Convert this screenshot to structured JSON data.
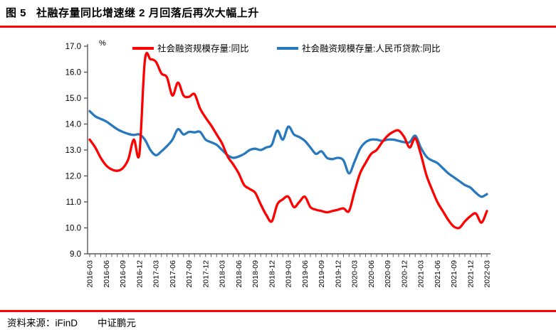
{
  "report": {
    "figure_label": "图 5",
    "figure_title": "社融存量同比增速继 2 月回落后再次大幅上升",
    "source_prefix": "资料来源：iFinD",
    "source_org": "中证鹏元"
  },
  "colors": {
    "accent_rule_red": "#fe0000",
    "series_red": "#ff0000",
    "series_blue": "#2878be",
    "axis_gray": "#595959",
    "tick_text": "#000000"
  },
  "chart_data": {
    "type": "line",
    "title": "",
    "xlabel": "",
    "ylabel": "",
    "unit": "%",
    "ylim": [
      9.0,
      17.0
    ],
    "ytick_step": 1.0,
    "ytick_format_decimals": 1,
    "xtick_label_every": 3,
    "grid": false,
    "legend_position": "top",
    "x": [
      "2016-03",
      "2016-04",
      "2016-05",
      "2016-06",
      "2016-07",
      "2016-08",
      "2016-09",
      "2016-10",
      "2016-11",
      "2016-12",
      "2017-01",
      "2017-02",
      "2017-03",
      "2017-04",
      "2017-05",
      "2017-06",
      "2017-07",
      "2017-08",
      "2017-09",
      "2017-10",
      "2017-11",
      "2017-12",
      "2018-01",
      "2018-02",
      "2018-03",
      "2018-04",
      "2018-05",
      "2018-06",
      "2018-07",
      "2018-08",
      "2018-09",
      "2018-10",
      "2018-11",
      "2018-12",
      "2019-01",
      "2019-02",
      "2019-03",
      "2019-04",
      "2019-05",
      "2019-06",
      "2019-07",
      "2019-08",
      "2019-09",
      "2019-10",
      "2019-11",
      "2019-12",
      "2020-01",
      "2020-02",
      "2020-03",
      "2020-04",
      "2020-05",
      "2020-06",
      "2020-07",
      "2020-08",
      "2020-09",
      "2020-10",
      "2020-11",
      "2020-12",
      "2021-01",
      "2021-02",
      "2021-03",
      "2021-04",
      "2021-05",
      "2021-06",
      "2021-07",
      "2021-08",
      "2021-09",
      "2021-10",
      "2021-11",
      "2021-12",
      "2022-01",
      "2022-02",
      "2022-03"
    ],
    "series": [
      {
        "name": "社会融资规模存量:同比",
        "color": "#ff0000",
        "values": [
          13.4,
          13.1,
          12.7,
          12.4,
          12.25,
          12.2,
          12.3,
          12.65,
          13.4,
          12.85,
          16.45,
          16.5,
          16.4,
          15.95,
          15.8,
          15.1,
          15.6,
          15.1,
          15.05,
          15.15,
          14.6,
          14.25,
          13.95,
          13.6,
          13.25,
          12.75,
          12.45,
          12.1,
          11.65,
          11.5,
          11.35,
          10.9,
          10.5,
          10.25,
          10.9,
          11.1,
          11.2,
          10.8,
          11.0,
          11.2,
          10.8,
          10.7,
          10.65,
          10.6,
          10.65,
          10.7,
          10.75,
          10.65,
          11.4,
          12.1,
          12.5,
          12.85,
          13.0,
          13.3,
          13.55,
          13.7,
          13.75,
          13.5,
          13.1,
          13.45,
          12.85,
          12.05,
          11.5,
          11.0,
          10.65,
          10.3,
          10.05,
          10.0,
          10.25,
          10.45,
          10.55,
          10.2,
          10.65
        ]
      },
      {
        "name": "社会融资规模存量:人民币贷款:同比",
        "color": "#2878be",
        "values": [
          14.5,
          14.3,
          14.2,
          14.1,
          13.95,
          13.8,
          13.7,
          13.62,
          13.58,
          13.6,
          13.4,
          13.0,
          12.8,
          12.95,
          13.15,
          13.4,
          13.8,
          13.6,
          13.7,
          13.68,
          13.7,
          13.4,
          13.3,
          13.2,
          13.0,
          12.8,
          12.7,
          12.75,
          12.85,
          13.0,
          13.05,
          13.0,
          13.1,
          13.2,
          13.75,
          13.4,
          13.9,
          13.6,
          13.5,
          13.35,
          13.1,
          12.85,
          12.95,
          12.7,
          12.65,
          12.7,
          12.6,
          12.1,
          12.55,
          13.05,
          13.3,
          13.4,
          13.4,
          13.35,
          13.4,
          13.4,
          13.35,
          13.3,
          13.3,
          13.55,
          13.1,
          12.75,
          12.6,
          12.5,
          12.3,
          12.1,
          11.95,
          11.8,
          11.65,
          11.55,
          11.35,
          11.2,
          11.3
        ]
      }
    ]
  }
}
